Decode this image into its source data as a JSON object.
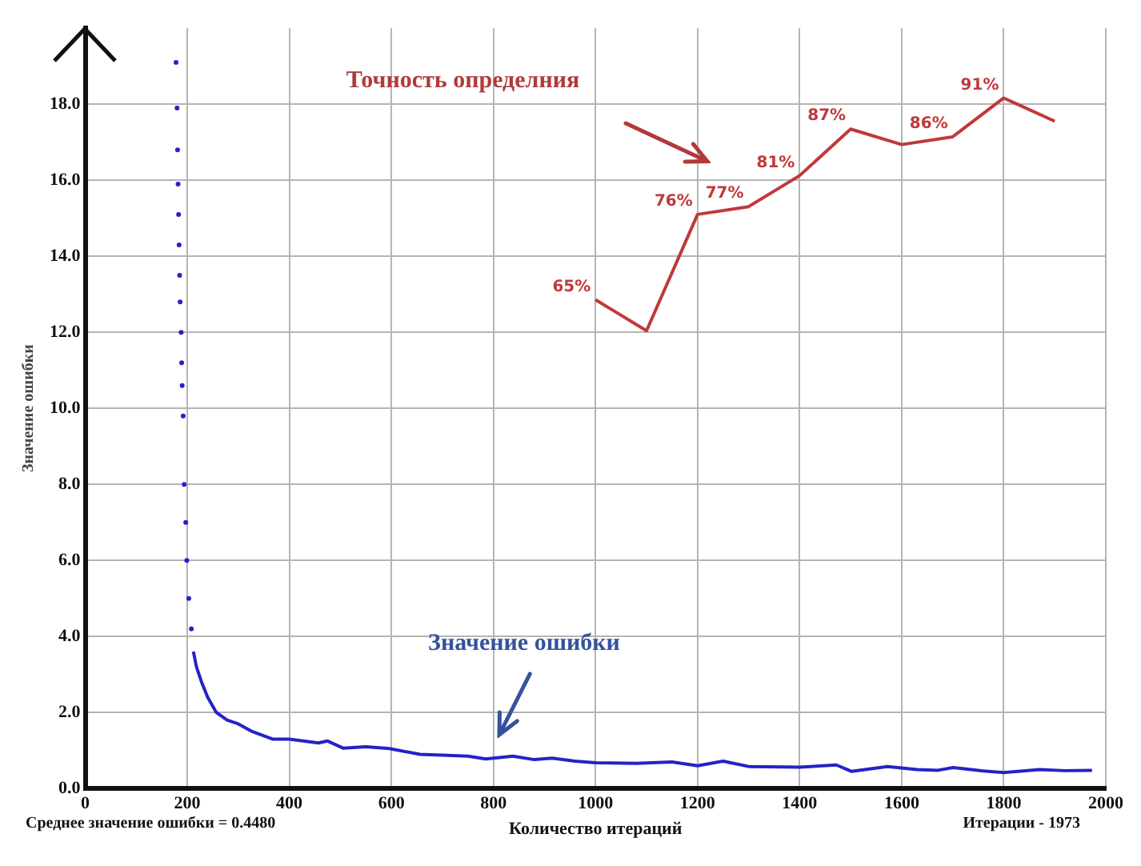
{
  "chart_data": {
    "type": "line",
    "xlabel": "Количество итераций",
    "ylabel": "Значение ошибки",
    "xlim": [
      0,
      2000
    ],
    "xticks": [
      0,
      200,
      400,
      600,
      800,
      1000,
      1200,
      1400,
      1600,
      1800,
      2000
    ],
    "ylim": [
      0,
      20
    ],
    "yticks": [
      {
        "value": 0,
        "label": "0.0"
      },
      {
        "value": 2,
        "label": "2.0"
      },
      {
        "value": 4,
        "label": "4.0"
      },
      {
        "value": 6,
        "label": "6.0"
      },
      {
        "value": 8,
        "label": "8.0"
      },
      {
        "value": 10,
        "label": "10.0"
      },
      {
        "value": 12,
        "label": "12.0"
      },
      {
        "value": 14,
        "label": "14.0"
      },
      {
        "value": 16,
        "label": "16.0"
      },
      {
        "value": 18,
        "label": "18.0"
      }
    ],
    "y2lim": [
      2,
      100
    ],
    "grid": true,
    "legend": false,
    "series": [
      {
        "type": "scatter",
        "color": "#2323c8",
        "marker": "circle",
        "x": [
          178,
          180,
          181,
          182,
          183,
          184,
          185,
          186,
          188,
          189,
          190,
          192,
          194,
          197,
          199,
          203,
          208
        ],
        "values": [
          19.1,
          17.9,
          16.8,
          15.9,
          15.1,
          14.3,
          13.5,
          12.8,
          12.0,
          11.2,
          10.6,
          9.8,
          8.0,
          7.0,
          6.0,
          5.0,
          4.2
        ]
      },
      {
        "color": "#2323c8",
        "x": [
          212,
          218,
          228,
          240,
          257,
          278,
          300,
          327,
          367,
          400,
          457,
          475,
          506,
          550,
          596,
          656,
          700,
          750,
          785,
          838,
          880,
          915,
          960,
          1000,
          1080,
          1150,
          1200,
          1250,
          1300,
          1400,
          1472,
          1502,
          1572,
          1630,
          1671,
          1701,
          1760,
          1800,
          1870,
          1920,
          1973
        ],
        "values": [
          3.6,
          3.2,
          2.8,
          2.4,
          2.0,
          1.8,
          1.7,
          1.5,
          1.3,
          1.3,
          1.2,
          1.25,
          1.06,
          1.1,
          1.05,
          0.9,
          0.88,
          0.85,
          0.78,
          0.85,
          0.76,
          0.8,
          0.72,
          0.68,
          0.66,
          0.7,
          0.6,
          0.72,
          0.58,
          0.56,
          0.62,
          0.45,
          0.58,
          0.5,
          0.48,
          0.55,
          0.46,
          0.42,
          0.5,
          0.47,
          0.48
        ]
      },
      {
        "color": "#c0393b",
        "axis": "y2",
        "x": [
          1000,
          1100,
          1200,
          1300,
          1400,
          1500,
          1600,
          1700,
          1800,
          1900
        ],
        "values": [
          65,
          61,
          76,
          77,
          81,
          87,
          85,
          86,
          91,
          88
        ],
        "value_labels": [
          "65%",
          null,
          "76%",
          "77%",
          "81%",
          "87%",
          null,
          "86%",
          "91%",
          null
        ]
      }
    ],
    "annotations": [
      "Точность определния",
      "Значение ошибки",
      "Среднее значение ошибки = 0.4480",
      "Итерации - 1973"
    ]
  }
}
